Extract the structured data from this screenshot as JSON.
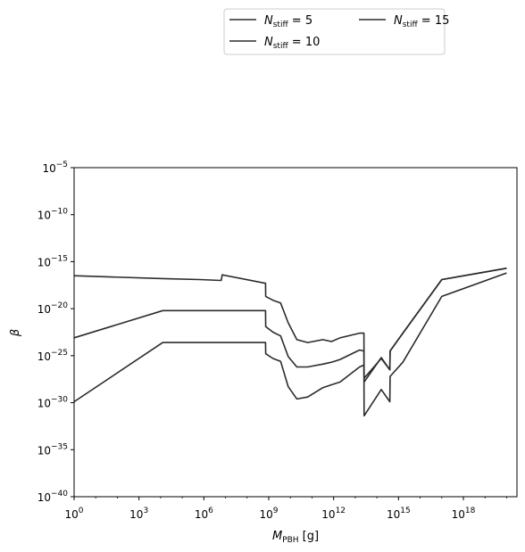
{
  "chart_data": {
    "type": "line",
    "xscale": "log",
    "yscale": "log",
    "xlim": [
      1,
      3e+20
    ],
    "ylim": [
      1e-40,
      1e-05
    ],
    "xlabel": "M_PBH [g]",
    "ylabel": "β",
    "xticks": [
      {
        "value": 1,
        "base": "10",
        "exp": "0"
      },
      {
        "value": 1000.0,
        "base": "10",
        "exp": "3"
      },
      {
        "value": 1000000.0,
        "base": "10",
        "exp": "6"
      },
      {
        "value": 1000000000.0,
        "base": "10",
        "exp": "9"
      },
      {
        "value": 1000000000000.0,
        "base": "10",
        "exp": "12"
      },
      {
        "value": 1000000000000000.0,
        "base": "10",
        "exp": "15"
      },
      {
        "value": 1e+18,
        "base": "10",
        "exp": "18"
      }
    ],
    "yticks": [
      {
        "value": 1e-05,
        "base": "10",
        "exp": "−5"
      },
      {
        "value": 1e-10,
        "base": "10",
        "exp": "−10"
      },
      {
        "value": 1e-15,
        "base": "10",
        "exp": "−15"
      },
      {
        "value": 1e-20,
        "base": "10",
        "exp": "−20"
      },
      {
        "value": 1e-25,
        "base": "10",
        "exp": "−25"
      },
      {
        "value": 1e-30,
        "base": "10",
        "exp": "−30"
      },
      {
        "value": 1e-35,
        "base": "10",
        "exp": "−35"
      },
      {
        "value": 1e-40,
        "base": "10",
        "exp": "−40"
      }
    ],
    "legend": {
      "placement": "upper center, outside above plot",
      "columns": 2
    },
    "series": [
      {
        "name": "N_stiff = 5",
        "color": "#2b2b2b",
        "points": [
          [
            0,
            -16.5
          ],
          [
            4.1,
            -16.8
          ],
          [
            5.8,
            -16.9
          ],
          [
            6.8,
            -17.0
          ],
          [
            6.85,
            -16.4
          ],
          [
            8.85,
            -17.3
          ],
          [
            8.86,
            -18.7
          ],
          [
            9.2,
            -19.1
          ],
          [
            9.55,
            -19.4
          ],
          [
            9.9,
            -21.5
          ],
          [
            10.3,
            -23.3
          ],
          [
            10.8,
            -23.6
          ],
          [
            11.5,
            -23.3
          ],
          [
            11.9,
            -23.5
          ],
          [
            12.3,
            -23.1
          ],
          [
            13.2,
            -22.6
          ],
          [
            13.4,
            -22.6
          ],
          [
            13.41,
            -27.8
          ],
          [
            14.2,
            -25.2
          ],
          [
            14.6,
            -26.5
          ],
          [
            14.61,
            -24.5
          ],
          [
            15.2,
            -22.6
          ],
          [
            17.0,
            -16.9
          ],
          [
            20.0,
            -15.7
          ]
        ]
      },
      {
        "name": "N_stiff = 10",
        "color": "#2b2b2b",
        "points": [
          [
            0,
            -23.1
          ],
          [
            4.1,
            -20.2
          ],
          [
            8.85,
            -20.2
          ],
          [
            8.86,
            -21.9
          ],
          [
            9.2,
            -22.5
          ],
          [
            9.55,
            -22.9
          ],
          [
            9.9,
            -25.1
          ],
          [
            10.3,
            -26.2
          ],
          [
            10.8,
            -26.2
          ],
          [
            11.5,
            -25.9
          ],
          [
            11.9,
            -25.7
          ],
          [
            12.3,
            -25.4
          ],
          [
            13.2,
            -24.4
          ],
          [
            13.4,
            -24.5
          ],
          [
            13.41,
            -27.4
          ],
          [
            14.2,
            -25.3
          ],
          [
            14.6,
            -26.5
          ],
          [
            14.61,
            -24.5
          ],
          [
            15.2,
            -22.6
          ],
          [
            17.0,
            -16.9
          ],
          [
            20.0,
            -15.7
          ]
        ]
      },
      {
        "name": "N_stiff = 15",
        "color": "#2b2b2b",
        "points": [
          [
            0,
            -29.9
          ],
          [
            4.1,
            -23.6
          ],
          [
            8.85,
            -23.6
          ],
          [
            8.86,
            -24.8
          ],
          [
            9.2,
            -25.3
          ],
          [
            9.55,
            -25.6
          ],
          [
            9.9,
            -28.3
          ],
          [
            10.3,
            -29.6
          ],
          [
            10.8,
            -29.4
          ],
          [
            11.5,
            -28.4
          ],
          [
            11.9,
            -28.1
          ],
          [
            12.3,
            -27.8
          ],
          [
            13.2,
            -26.2
          ],
          [
            13.4,
            -26.0
          ],
          [
            13.41,
            -31.4
          ],
          [
            14.2,
            -28.6
          ],
          [
            14.6,
            -29.9
          ],
          [
            14.61,
            -27.2
          ],
          [
            15.2,
            -25.7
          ],
          [
            17.0,
            -18.7
          ],
          [
            20.0,
            -16.2
          ]
        ]
      }
    ]
  }
}
